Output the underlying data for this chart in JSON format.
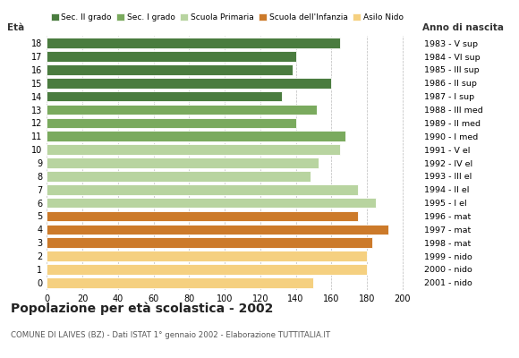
{
  "ages": [
    18,
    17,
    16,
    15,
    14,
    13,
    12,
    11,
    10,
    9,
    8,
    7,
    6,
    5,
    4,
    3,
    2,
    1,
    0
  ],
  "values": [
    165,
    140,
    138,
    160,
    132,
    152,
    140,
    168,
    165,
    153,
    148,
    175,
    185,
    175,
    192,
    183,
    180,
    180,
    150
  ],
  "right_labels": [
    "1983 - V sup",
    "1984 - VI sup",
    "1985 - III sup",
    "1986 - II sup",
    "1987 - I sup",
    "1988 - III med",
    "1989 - II med",
    "1990 - I med",
    "1991 - V el",
    "1992 - IV el",
    "1993 - III el",
    "1994 - II el",
    "1995 - I el",
    "1996 - mat",
    "1997 - mat",
    "1998 - mat",
    "1999 - nido",
    "2000 - nido",
    "2001 - nido"
  ],
  "bar_colors": [
    "#4a7c3f",
    "#4a7c3f",
    "#4a7c3f",
    "#4a7c3f",
    "#4a7c3f",
    "#7aaa5e",
    "#7aaa5e",
    "#7aaa5e",
    "#b8d4a0",
    "#b8d4a0",
    "#b8d4a0",
    "#b8d4a0",
    "#b8d4a0",
    "#cc7a2a",
    "#cc7a2a",
    "#cc7a2a",
    "#f5d080",
    "#f5d080",
    "#f5d080"
  ],
  "legend_labels": [
    "Sec. II grado",
    "Sec. I grado",
    "Scuola Primaria",
    "Scuola dell'Infanzia",
    "Asilo Nido"
  ],
  "legend_colors": [
    "#4a7c3f",
    "#7aaa5e",
    "#b8d4a0",
    "#cc7a2a",
    "#f5d080"
  ],
  "title": "Popolazione per età scolastica - 2002",
  "subtitle": "COMUNE DI LAIVES (BZ) - Dati ISTAT 1° gennaio 2002 - Elaborazione TUTTITALIA.IT",
  "xlabel_age": "Età",
  "xlabel_year": "Anno di nascita",
  "xlim": [
    0,
    210
  ],
  "xticks": [
    0,
    20,
    40,
    60,
    80,
    100,
    120,
    140,
    160,
    180,
    200
  ],
  "grid_color": "#aaaaaa",
  "bg_color": "#ffffff",
  "bar_height": 0.78
}
